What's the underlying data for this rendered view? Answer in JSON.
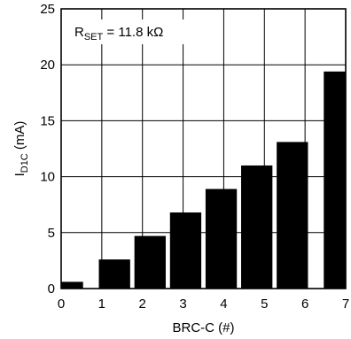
{
  "chart_data": {
    "type": "bar",
    "title": "",
    "xlabel": "BRC-C (#)",
    "ylabel_main": "I",
    "ylabel_sub": "D1C",
    "ylabel_unit": " (mA)",
    "xlim": [
      0,
      7
    ],
    "ylim": [
      0,
      25
    ],
    "x_ticks": [
      "0",
      "1",
      "2",
      "3",
      "4",
      "5",
      "6",
      "7"
    ],
    "y_ticks": [
      "0",
      "5",
      "10",
      "15",
      "20",
      "25"
    ],
    "grid": true,
    "categories": [
      "0",
      "1",
      "2",
      "3",
      "4",
      "5",
      "6",
      "7"
    ],
    "values": [
      0.6,
      2.6,
      4.7,
      6.8,
      8.9,
      11.0,
      13.1,
      19.4
    ],
    "annotation": {
      "main": "R",
      "sub": "SET",
      "rest": " = 11.8 kΩ"
    },
    "bar_color": "#000000",
    "grid_color": "#000000"
  }
}
